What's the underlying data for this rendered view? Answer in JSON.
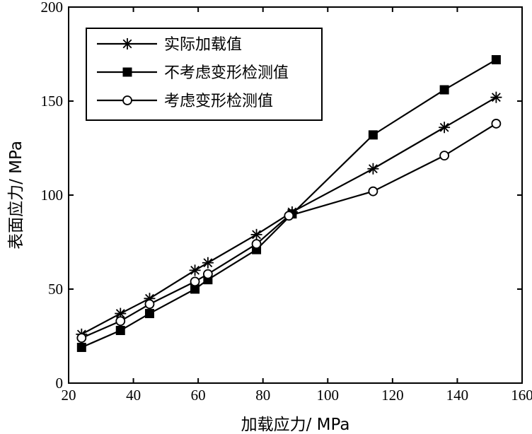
{
  "chart_data": {
    "type": "line",
    "title": "",
    "xlabel": "加载应力/ MPa",
    "ylabel": "表面应力/ MPa",
    "xlim": [
      20,
      160
    ],
    "ylim": [
      0,
      200
    ],
    "xticks": [
      20,
      40,
      60,
      80,
      100,
      120,
      140,
      160
    ],
    "yticks": [
      0,
      50,
      100,
      150,
      200
    ],
    "grid": false,
    "legend_position": "top-left",
    "series": [
      {
        "name": "实际加载值",
        "marker": "star",
        "x": [
          24,
          36,
          45,
          59,
          63,
          78,
          89,
          114,
          136,
          152
        ],
        "y": [
          26,
          37,
          45,
          60,
          64,
          79,
          91,
          114,
          136,
          152
        ]
      },
      {
        "name": "不考虑变形检测值",
        "marker": "filled-square",
        "x": [
          24,
          36,
          45,
          59,
          63,
          78,
          89,
          114,
          136,
          152
        ],
        "y": [
          19,
          28,
          37,
          50,
          55,
          71,
          90,
          132,
          156,
          172
        ]
      },
      {
        "name": "考虑变形检测值",
        "marker": "open-circle",
        "x": [
          24,
          36,
          45,
          59,
          63,
          78,
          88,
          114,
          136,
          152
        ],
        "y": [
          24,
          33,
          42,
          54,
          58,
          74,
          89,
          102,
          121,
          138
        ]
      }
    ]
  }
}
